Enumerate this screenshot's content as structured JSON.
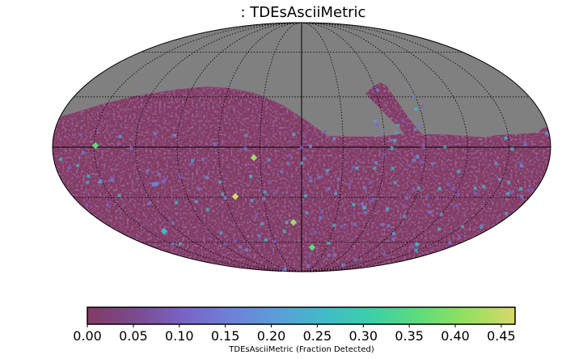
{
  "chart_data": {
    "type": "heatmap",
    "projection": "Mollweide sky map",
    "title": ": TDEsAsciiMetric",
    "colorbar": {
      "label": "TDEsAsciiMetric (Fraction Detected)",
      "range": [
        0.0,
        0.465
      ],
      "ticks": [
        "0.00",
        "0.05",
        "0.10",
        "0.15",
        "0.20",
        "0.25",
        "0.30",
        "0.35",
        "0.40",
        "0.45"
      ],
      "colormap": [
        "#833b63",
        "#7a4a8e",
        "#7a62c6",
        "#6f80d7",
        "#5b9ed9",
        "#40bcc8",
        "#39d1a6",
        "#5fdc7c",
        "#96e05e",
        "#d8d76a"
      ]
    },
    "background_value_color": "#808080",
    "typical_value": 0.07,
    "grid": true
  }
}
